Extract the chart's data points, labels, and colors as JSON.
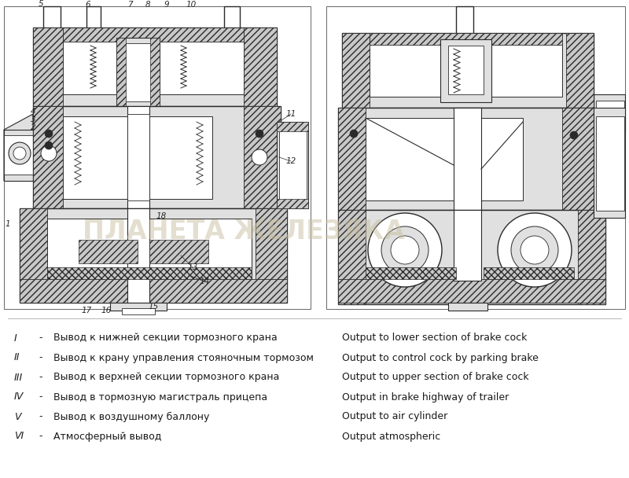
{
  "background_color": "#ffffff",
  "legend_rows": [
    {
      "roman": "I",
      "dash": "-",
      "russian": "Вывод к нижней секции тормозного крана",
      "english": "Output to lower section of brake cock"
    },
    {
      "roman": "II",
      "dash": "-",
      "russian": "Вывод к крану управления стояночным тормозом",
      "english": "Output to control cock by parking brake"
    },
    {
      "roman": "III",
      "dash": "-",
      "russian": "Вывод к верхней секции тормозного крана",
      "english": "Output to upper section of brake cock"
    },
    {
      "roman": "IV",
      "dash": "-",
      "russian": "Вывод в тормозную магистраль прицепа",
      "english": "Output in brake highway of trailer"
    },
    {
      "roman": "V",
      "dash": "-",
      "russian": "Вывод к воздушному баллону",
      "english": "Output to air cylinder"
    },
    {
      "roman": "VI",
      "dash": "-",
      "russian": "Атмосферный вывод",
      "english": "Output atmospheric"
    }
  ],
  "watermark": "ПЛАНЕТА ЖЕЛЕЗЯКА",
  "text_color": "#1a1a1a",
  "legend_font_size": 9.0,
  "watermark_color": "#c8bfa0",
  "watermark_alpha": 0.5,
  "watermark_fontsize": 24
}
